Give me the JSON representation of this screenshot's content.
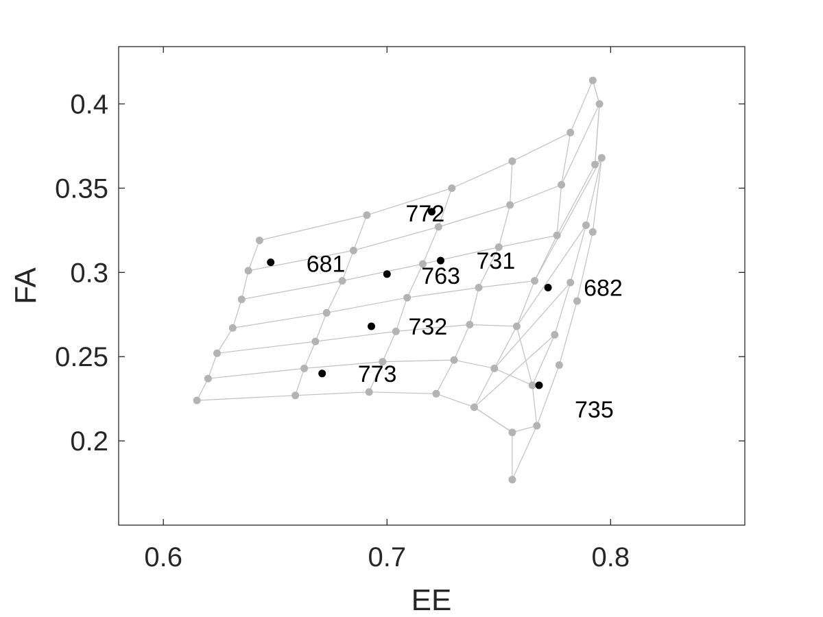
{
  "chart_data": {
    "type": "scatter",
    "xlabel": "EE",
    "ylabel": "FA",
    "xlim": [
      0.58,
      0.86
    ],
    "ylim": [
      0.15,
      0.434
    ],
    "x_ticks": [
      0.6,
      0.7,
      0.8
    ],
    "x_tick_labels": [
      "0.6",
      "0.7",
      "0.8"
    ],
    "y_ticks": [
      0.2,
      0.25,
      0.3,
      0.35,
      0.4
    ],
    "y_tick_labels": [
      "0.2",
      "0.25",
      "0.3",
      "0.35",
      "0.4"
    ],
    "grid": false,
    "colors": {
      "mesh": "#b3b3b3",
      "mesh_line": "#c0c0c0",
      "highlight": "#000000",
      "axis": "#262626"
    },
    "mesh_rows": [
      [
        [
          0.643,
          0.319
        ],
        [
          0.691,
          0.334
        ],
        [
          0.729,
          0.35
        ],
        [
          0.756,
          0.366
        ],
        [
          0.782,
          0.383
        ],
        [
          0.792,
          0.414
        ]
      ],
      [
        [
          0.638,
          0.301
        ],
        [
          0.685,
          0.313
        ],
        [
          0.723,
          0.327
        ],
        [
          0.755,
          0.34
        ],
        [
          0.778,
          0.352
        ],
        [
          0.795,
          0.4
        ]
      ],
      [
        [
          0.635,
          0.284
        ],
        [
          0.68,
          0.295
        ],
        [
          0.716,
          0.305
        ],
        [
          0.75,
          0.315
        ],
        [
          0.776,
          0.322
        ],
        [
          0.793,
          0.364
        ]
      ],
      [
        [
          0.631,
          0.267
        ],
        [
          0.673,
          0.276
        ],
        [
          0.709,
          0.285
        ],
        [
          0.741,
          0.291
        ],
        [
          0.766,
          0.295
        ],
        [
          0.796,
          0.368
        ]
      ],
      [
        [
          0.624,
          0.252
        ],
        [
          0.668,
          0.259
        ],
        [
          0.704,
          0.265
        ],
        [
          0.737,
          0.269
        ],
        [
          0.758,
          0.268
        ],
        [
          0.789,
          0.328
        ]
      ],
      [
        [
          0.62,
          0.237
        ],
        [
          0.663,
          0.243
        ],
        [
          0.698,
          0.247
        ],
        [
          0.73,
          0.248
        ],
        [
          0.748,
          0.243
        ],
        [
          0.782,
          0.294
        ]
      ],
      [
        [
          0.615,
          0.224
        ],
        [
          0.659,
          0.227
        ],
        [
          0.692,
          0.229
        ],
        [
          0.722,
          0.228
        ],
        [
          0.739,
          0.22
        ],
        [
          0.775,
          0.263
        ]
      ]
    ],
    "mesh_extra_segments": [
      [
        [
          0.739,
          0.22
        ],
        [
          0.756,
          0.205
        ],
        [
          0.767,
          0.209
        ],
        [
          0.777,
          0.245
        ],
        [
          0.785,
          0.283
        ],
        [
          0.792,
          0.324
        ],
        [
          0.796,
          0.368
        ]
      ],
      [
        [
          0.756,
          0.205
        ],
        [
          0.756,
          0.177
        ],
        [
          0.767,
          0.209
        ],
        [
          0.765,
          0.233
        ],
        [
          0.775,
          0.263
        ]
      ],
      [
        [
          0.765,
          0.233
        ],
        [
          0.758,
          0.268
        ]
      ],
      [
        [
          0.765,
          0.233
        ],
        [
          0.748,
          0.243
        ]
      ],
      [
        [
          0.756,
          0.205
        ],
        [
          0.739,
          0.22
        ]
      ],
      [
        [
          0.792,
          0.414
        ],
        [
          0.795,
          0.4
        ],
        [
          0.793,
          0.364
        ]
      ]
    ],
    "highlighted_points": [
      {
        "x": 0.648,
        "y": 0.306,
        "label": "681"
      },
      {
        "x": 0.772,
        "y": 0.291,
        "label": "682"
      },
      {
        "x": 0.724,
        "y": 0.307,
        "label": "731"
      },
      {
        "x": 0.693,
        "y": 0.268,
        "label": "732"
      },
      {
        "x": 0.768,
        "y": 0.233,
        "label": "735"
      },
      {
        "x": 0.7,
        "y": 0.299,
        "label": "763"
      },
      {
        "x": 0.72,
        "y": 0.336,
        "label": "772"
      },
      {
        "x": 0.671,
        "y": 0.24,
        "label": "773"
      }
    ]
  }
}
